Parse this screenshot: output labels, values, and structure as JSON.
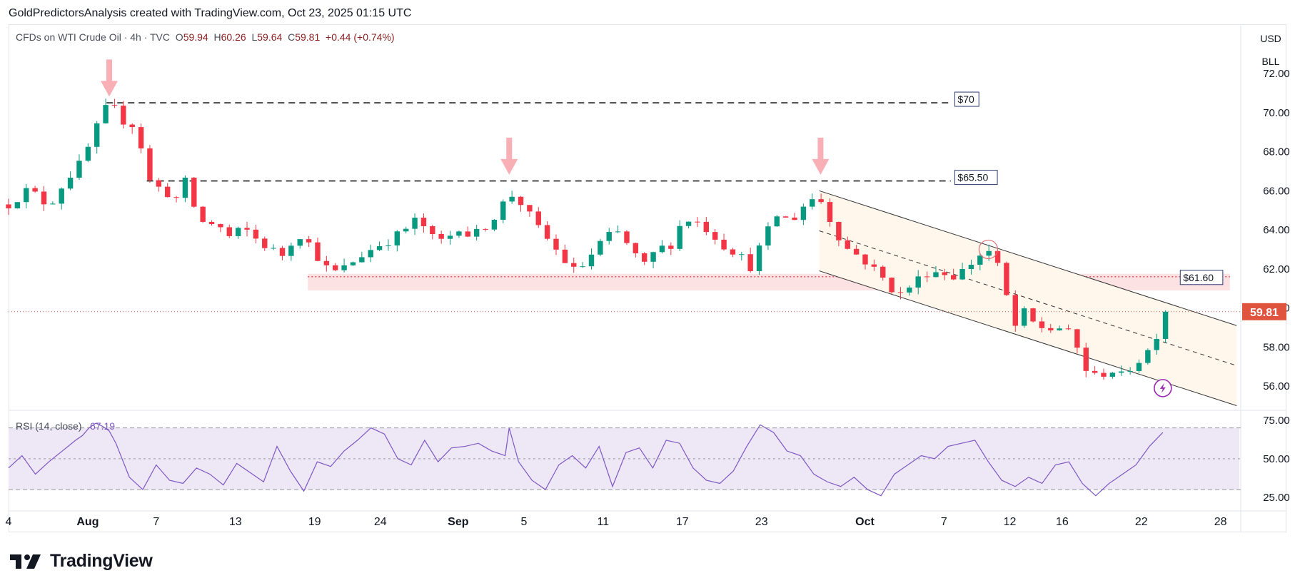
{
  "header": {
    "text": "GoldPredictorsAnalysis created with TradingView.com, Oct 23, 2025 01:15 UTC"
  },
  "legend": {
    "symbol": "CFDs on WTI Crude Oil · 4h · TVC",
    "open_label": "O",
    "open": "59.94",
    "high_label": "H",
    "high": "60.26",
    "low_label": "L",
    "low": "59.64",
    "close_label": "C",
    "close": "59.81",
    "change": "+0.44 (+0.74%)"
  },
  "price_axis": {
    "currency": "USD",
    "unit": "BLL"
  },
  "rsi_legend": {
    "label": "RSI (14, close)",
    "value": "67.19"
  },
  "footer": {
    "brand": "TradingView",
    "logo_icon": "tradingview-logo-icon"
  },
  "colors": {
    "up": "#089981",
    "down": "#f23645",
    "rsi": "#7e57c2",
    "support_zone": "#fde2e4",
    "channel_fill": "#fff6ec",
    "arrow": "#f7a1a9",
    "last_price_bg": "#e0533f"
  },
  "chart_data": [
    {
      "type": "candlestick",
      "title": "",
      "timeframe": "4h",
      "ylim": [
        54.8,
        74.3
      ],
      "y_ticks": [
        56,
        58,
        60,
        62,
        64,
        66,
        68,
        70,
        72
      ],
      "y_tick_labels": [
        "56.00",
        "58.00",
        "60.00",
        "62.00",
        "64.00",
        "66.00",
        "68.00",
        "70.00",
        "72.00"
      ],
      "x_ticks": [
        {
          "label": "4",
          "day": 0
        },
        {
          "label": "Aug",
          "day": 5.9
        },
        {
          "label": "7",
          "day": 11
        },
        {
          "label": "13",
          "day": 16.9
        },
        {
          "label": "19",
          "day": 22.8
        },
        {
          "label": "24",
          "day": 27.7
        },
        {
          "label": "Sep",
          "day": 33.5
        },
        {
          "label": "5",
          "day": 38.4
        },
        {
          "label": "11",
          "day": 44.3
        },
        {
          "label": "17",
          "day": 50.2
        },
        {
          "label": "23",
          "day": 56.1
        },
        {
          "label": "Oct",
          "day": 63.8
        },
        {
          "label": "7",
          "day": 69.7
        },
        {
          "label": "12",
          "day": 74.6
        },
        {
          "label": "16",
          "day": 78.5
        },
        {
          "label": "22",
          "day": 84.4
        },
        {
          "label": "28",
          "day": 90.3
        }
      ],
      "x_range_days": [
        0,
        91.7
      ],
      "path": [
        [
          0,
          65.3
        ],
        [
          1.5,
          66.1
        ],
        [
          3,
          65.2
        ],
        [
          4.2,
          66.5
        ],
        [
          5.5,
          67.5
        ],
        [
          6.8,
          69.6
        ],
        [
          7.5,
          70.5
        ],
        [
          8.5,
          69.6
        ],
        [
          9.5,
          69.3
        ],
        [
          10.5,
          66.5
        ],
        [
          11.5,
          66.0
        ],
        [
          12.5,
          65.6
        ],
        [
          13.2,
          66.5
        ],
        [
          14.2,
          64.4
        ],
        [
          15.5,
          64.3
        ],
        [
          16.5,
          63.6
        ],
        [
          17.5,
          64.1
        ],
        [
          18.5,
          63.5
        ],
        [
          19.5,
          63.0
        ],
        [
          20.5,
          62.7
        ],
        [
          21.5,
          63.9
        ],
        [
          22.5,
          63.2
        ],
        [
          23.5,
          62.1
        ],
        [
          24.5,
          61.8
        ],
        [
          25.5,
          62.3
        ],
        [
          26.5,
          62.8
        ],
        [
          27.5,
          63.2
        ],
        [
          28.5,
          63.5
        ],
        [
          29.5,
          64.0
        ],
        [
          30.5,
          64.6
        ],
        [
          31.5,
          63.6
        ],
        [
          32.5,
          63.4
        ],
        [
          33.5,
          64.2
        ],
        [
          34.5,
          63.6
        ],
        [
          35.5,
          64.2
        ],
        [
          36.5,
          64.9
        ],
        [
          37.3,
          65.9
        ],
        [
          38.3,
          65.3
        ],
        [
          39.3,
          64.2
        ],
        [
          40.3,
          63.4
        ],
        [
          41.3,
          62.5
        ],
        [
          42.3,
          61.8
        ],
        [
          43.3,
          62.6
        ],
        [
          44.3,
          63.5
        ],
        [
          45.3,
          63.9
        ],
        [
          46.3,
          63.1
        ],
        [
          47.3,
          62.1
        ],
        [
          48.3,
          63.0
        ],
        [
          49.3,
          63.2
        ],
        [
          50.3,
          64.6
        ],
        [
          51.3,
          64.4
        ],
        [
          52.3,
          63.9
        ],
        [
          53.3,
          63.2
        ],
        [
          54.3,
          62.8
        ],
        [
          55.3,
          62.1
        ],
        [
          56.3,
          63.6
        ],
        [
          57.3,
          64.8
        ],
        [
          58.3,
          64.4
        ],
        [
          59.3,
          65.3
        ],
        [
          60.3,
          65.8
        ],
        [
          61.3,
          64.4
        ],
        [
          62.3,
          63.1
        ],
        [
          63.3,
          62.7
        ],
        [
          64.3,
          62.1
        ],
        [
          65.3,
          61.4
        ],
        [
          66.3,
          60.6
        ],
        [
          67.3,
          61.2
        ],
        [
          68.3,
          61.8
        ],
        [
          69.3,
          61.9
        ],
        [
          70.3,
          61.6
        ],
        [
          71.3,
          62.0
        ],
        [
          72.3,
          62.7
        ],
        [
          73.1,
          62.9
        ],
        [
          74.1,
          61.6
        ],
        [
          74.8,
          58.8
        ],
        [
          75.6,
          59.8
        ],
        [
          76.5,
          59.1
        ],
        [
          77.5,
          58.9
        ],
        [
          78.4,
          59.0
        ],
        [
          79.3,
          58.5
        ],
        [
          80.2,
          56.9
        ],
        [
          81.1,
          56.4
        ],
        [
          82.0,
          56.9
        ],
        [
          82.9,
          56.5
        ],
        [
          83.8,
          57.1
        ],
        [
          84.7,
          57.6
        ],
        [
          85.4,
          58.4
        ],
        [
          86.2,
          59.8
        ]
      ],
      "candle_count": 132,
      "last_price": "59.81"
    },
    {
      "type": "line",
      "title": "RSI (14, close)",
      "ylim": [
        18,
        80
      ],
      "y_ticks": [
        25,
        50,
        75
      ],
      "y_tick_labels": [
        "25.00",
        "50.00",
        "75.00"
      ],
      "levels": [
        70,
        50,
        30
      ],
      "x": [
        0,
        1,
        2,
        3,
        4,
        5,
        5.5,
        6,
        6.5,
        7,
        7.5,
        8,
        9,
        10,
        11,
        12,
        13,
        14,
        15,
        16,
        17,
        18,
        19,
        20,
        21,
        22,
        23,
        24,
        25,
        26,
        27,
        28,
        29,
        30,
        31,
        32,
        33,
        34,
        35,
        36,
        37,
        37.3,
        38,
        39,
        40,
        41,
        42,
        43,
        44,
        45,
        46,
        47,
        48,
        49,
        50,
        51,
        52,
        53,
        54,
        55,
        56,
        57,
        58,
        59,
        60,
        61,
        62,
        63,
        64,
        65,
        66,
        67,
        68,
        69,
        70,
        71,
        72,
        73,
        74,
        75,
        76,
        77,
        78,
        79,
        80,
        81,
        82,
        83,
        84,
        85,
        86
      ],
      "values": [
        44,
        52,
        40,
        48,
        55,
        62,
        65,
        70,
        73,
        71,
        68,
        60,
        38,
        30,
        46,
        36,
        34,
        44,
        40,
        33,
        47,
        41,
        35,
        58,
        42,
        29,
        48,
        45,
        55,
        62,
        70,
        66,
        50,
        46,
        62,
        48,
        57,
        58,
        60,
        55,
        52,
        70,
        48,
        36,
        30,
        46,
        52,
        44,
        58,
        32,
        54,
        57,
        44,
        62,
        60,
        44,
        36,
        34,
        42,
        58,
        72,
        67,
        55,
        52,
        40,
        35,
        32,
        38,
        30,
        26,
        40,
        46,
        52,
        50,
        58,
        60,
        62,
        48,
        36,
        32,
        38,
        34,
        46,
        48,
        34,
        26,
        34,
        40,
        46,
        58,
        67
      ],
      "value": "67.19"
    }
  ],
  "annotations": {
    "resistance_70": "$70",
    "resistance_65_50": "$65.50",
    "support_61_60": "$61.60"
  }
}
